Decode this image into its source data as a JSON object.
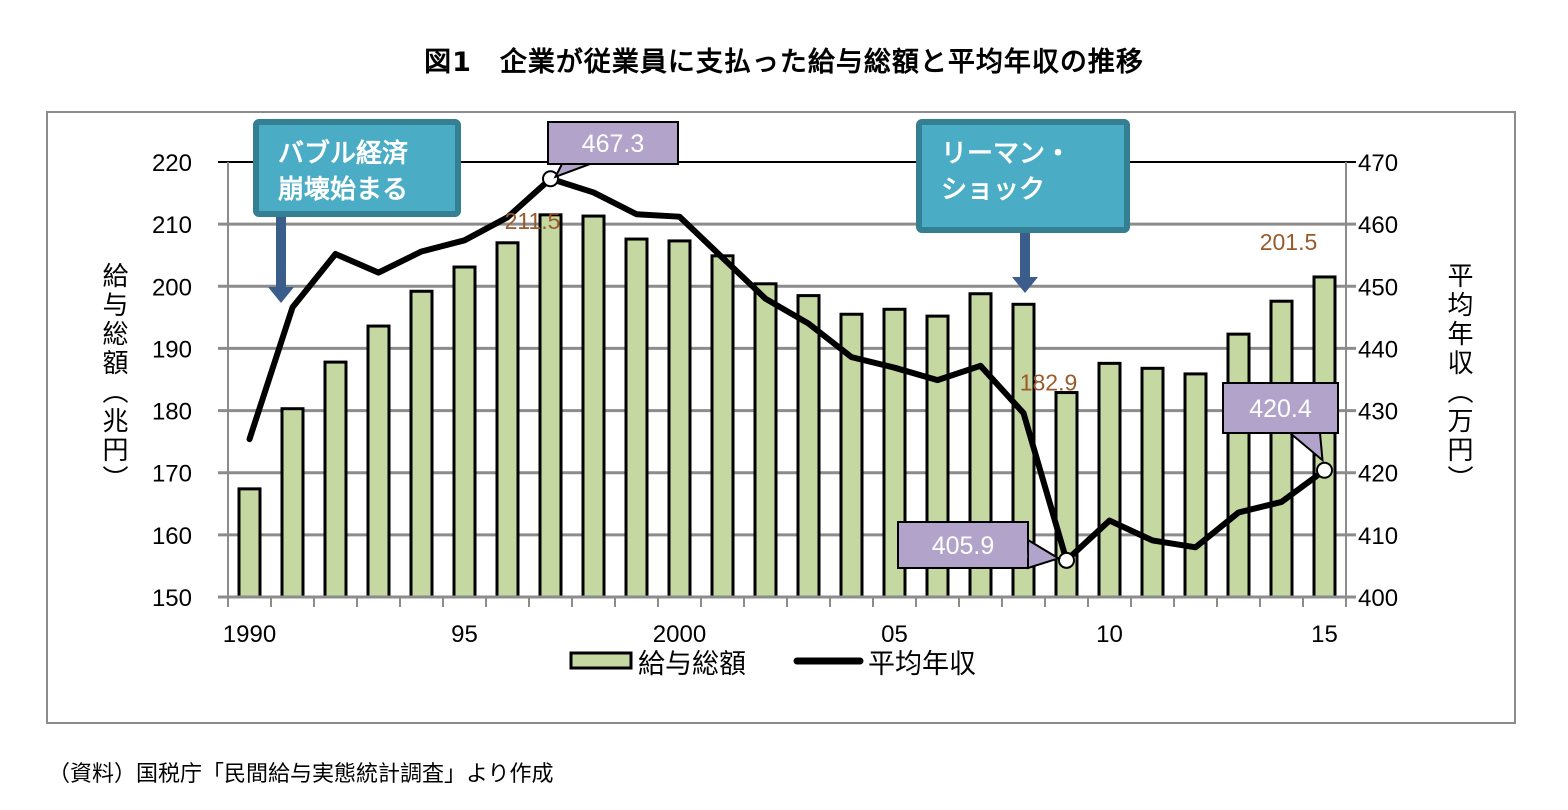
{
  "title": "図1　企業が従業員に支払った給与総額と平均年収の推移",
  "source_note": "（資料）国税庁「民間給与実態統計調査」より作成",
  "colors": {
    "bar_fill": "#c5d8a2",
    "bar_stroke": "#000000",
    "line": "#000000",
    "grid": "#8c8c8c",
    "callout_fill": "#4aacc5",
    "callout_border": "#357f93",
    "arrow": "#3a5d8c",
    "value_box": "#b1a3c9",
    "data_label": "#9a5a2a"
  },
  "chart_data": {
    "type": "bar+line",
    "title": "図1　企業が従業員に支払った給与総額と平均年収の推移",
    "x": [
      1990,
      1991,
      1992,
      1993,
      1994,
      1995,
      1996,
      1997,
      1998,
      1999,
      2000,
      2001,
      2002,
      2003,
      2004,
      2005,
      2006,
      2007,
      2008,
      2009,
      2010,
      2011,
      2012,
      2013,
      2014,
      2015
    ],
    "xtick_labels": [
      {
        "year": 1990,
        "label": "1990"
      },
      {
        "year": 1995,
        "label": "95"
      },
      {
        "year": 2000,
        "label": "2000"
      },
      {
        "year": 2005,
        "label": "05"
      },
      {
        "year": 2010,
        "label": "10"
      },
      {
        "year": 2015,
        "label": "15"
      }
    ],
    "left_axis": {
      "label": "給与総額（兆円）",
      "ylim": [
        150,
        220
      ],
      "ticks": [
        "150",
        "160",
        "170",
        "180",
        "190",
        "200",
        "210",
        "220"
      ]
    },
    "right_axis": {
      "label": "平均年収（万円）",
      "ylim": [
        400,
        470
      ],
      "ticks": [
        "400",
        "410",
        "420",
        "430",
        "440",
        "450",
        "460",
        "470"
      ]
    },
    "grid": true,
    "legend_position": "bottom",
    "series": [
      {
        "name": "給与総額",
        "type": "bar",
        "axis": "left",
        "values": [
          167.4,
          180.3,
          187.8,
          193.6,
          199.2,
          203.1,
          207.0,
          211.5,
          211.3,
          207.6,
          207.3,
          204.9,
          200.4,
          198.5,
          195.5,
          196.3,
          195.2,
          198.8,
          197.1,
          182.9,
          187.6,
          186.8,
          185.9,
          192.3,
          197.6,
          201.5
        ]
      },
      {
        "name": "平均年収",
        "type": "line",
        "axis": "right",
        "values": [
          425.4,
          446.6,
          455.2,
          452.2,
          455.6,
          457.4,
          461.1,
          467.3,
          465.1,
          461.6,
          461.2,
          454.6,
          448.0,
          444.0,
          438.6,
          436.9,
          434.9,
          437.2,
          429.6,
          405.9,
          412.3,
          409.1,
          408.0,
          413.6,
          415.3,
          420.4
        ]
      }
    ],
    "bar_data_labels": [
      {
        "year": 1997,
        "text": "211.5"
      },
      {
        "year": 2009,
        "text": "182.9"
      },
      {
        "year": 2015,
        "text": "201.5"
      }
    ],
    "line_value_callouts": [
      {
        "year": 1997,
        "text": "467.3"
      },
      {
        "year": 2009,
        "text": "405.9"
      },
      {
        "year": 2015,
        "text": "420.4"
      }
    ],
    "annotations": [
      {
        "year": 1991,
        "lines": [
          "バブル経済",
          "崩壊始まる"
        ]
      },
      {
        "year": 2008,
        "lines": [
          "リーマン・",
          "ショック"
        ]
      }
    ]
  }
}
